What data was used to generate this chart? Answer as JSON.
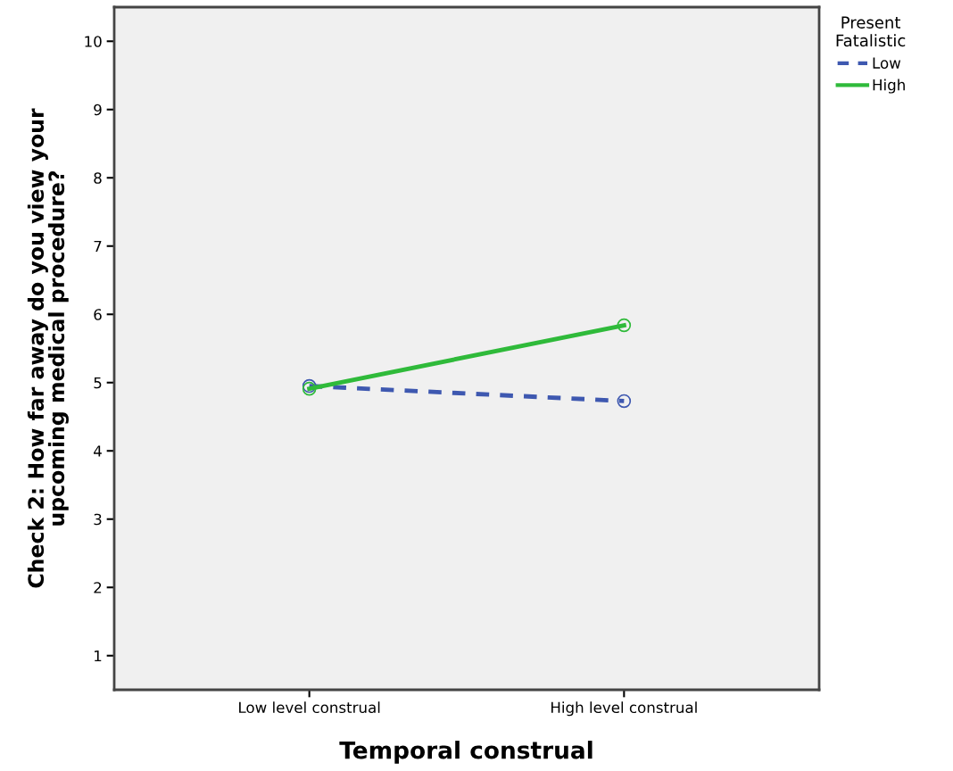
{
  "chart_data": {
    "type": "line",
    "xlabel": "Temporal construal",
    "ylabel": "Check 2: How far away do you view your upcoming medical procedure?",
    "legend_title": "Present Fatalistic",
    "categories": [
      "Low level construal",
      "High level construal"
    ],
    "series": [
      {
        "name": "Low",
        "color": "#3e58b0",
        "values": [
          4.95,
          4.73
        ],
        "line_style": "dashed"
      },
      {
        "name": "High",
        "color": "#2fba3a",
        "values": [
          4.91,
          5.84
        ],
        "line_style": "solid"
      }
    ],
    "ylim": [
      0.5,
      10.5
    ],
    "yticks": [
      1,
      2,
      3,
      4,
      5,
      6,
      7,
      8,
      9,
      10
    ],
    "marker": "circle",
    "legend": "top right",
    "grid": false
  }
}
